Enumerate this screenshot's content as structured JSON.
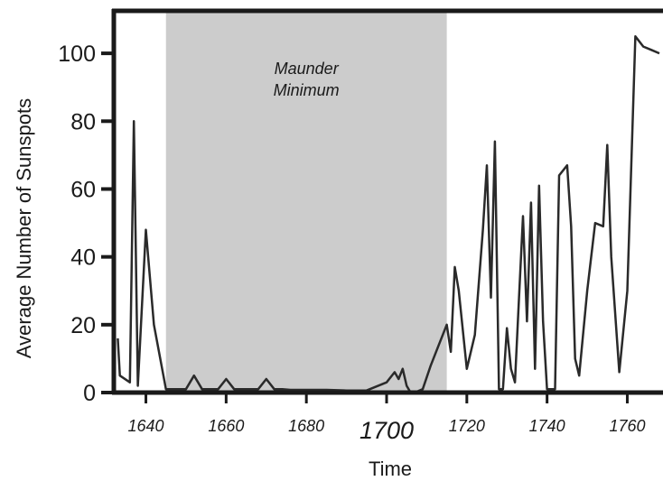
{
  "chart_data": {
    "type": "line",
    "title": "",
    "xlabel": "Time",
    "ylabel": "Average Number of Sunspots",
    "xlim": [
      1632,
      1768
    ],
    "ylim": [
      0,
      112
    ],
    "x_ticks": [
      {
        "value": 1640,
        "label": "1640"
      },
      {
        "value": 1660,
        "label": "1660"
      },
      {
        "value": 1680,
        "label": "1680"
      },
      {
        "value": 1700,
        "label": "1700",
        "emphasized": true
      },
      {
        "value": 1720,
        "label": "1720"
      },
      {
        "value": 1740,
        "label": "1740"
      },
      {
        "value": 1760,
        "label": "1760"
      }
    ],
    "y_ticks": [
      {
        "value": 0,
        "label": "0"
      },
      {
        "value": 20,
        "label": "20"
      },
      {
        "value": 40,
        "label": "40"
      },
      {
        "value": 60,
        "label": "60"
      },
      {
        "value": 80,
        "label": "80"
      },
      {
        "value": 100,
        "label": "100"
      }
    ],
    "grid": false,
    "shaded_region": {
      "x_start": 1645,
      "x_end": 1715,
      "label_lines": [
        "Maunder",
        "Minimum"
      ],
      "color": "#cccccc"
    },
    "series": [
      {
        "color": "#2a2a2a",
        "x": [
          1633,
          1633.5,
          1636,
          1637,
          1638,
          1640,
          1642,
          1645,
          1648,
          1650,
          1652,
          1654,
          1656,
          1658,
          1660,
          1662,
          1664,
          1666,
          1668,
          1670,
          1672,
          1674,
          1676,
          1680,
          1685,
          1690,
          1695,
          1700,
          1702,
          1703,
          1704,
          1705,
          1706,
          1707,
          1709,
          1711,
          1713,
          1715,
          1716,
          1717,
          1718,
          1720,
          1722,
          1724,
          1725,
          1726,
          1727,
          1728,
          1729,
          1730,
          1731,
          1732,
          1733,
          1734,
          1735,
          1736,
          1737,
          1738,
          1739,
          1740,
          1741,
          1742,
          1743,
          1745,
          1746,
          1747,
          1748,
          1750,
          1752,
          1754,
          1755,
          1756,
          1758,
          1760,
          1762,
          1764,
          1766,
          1768
        ],
        "y": [
          16,
          5,
          3,
          80,
          2,
          48,
          20,
          1,
          1,
          1,
          5,
          1,
          1,
          1,
          4,
          1,
          1,
          1,
          1,
          4,
          1,
          1,
          0.8,
          0.8,
          0.8,
          0.6,
          0.6,
          3,
          6,
          4,
          7,
          2,
          0,
          0,
          1,
          8,
          14,
          20,
          12,
          37,
          30,
          7,
          17,
          48,
          67,
          28,
          74,
          1,
          1,
          19,
          7,
          3,
          28,
          52,
          21,
          56,
          7,
          61,
          21,
          1,
          1,
          1,
          64,
          67,
          49,
          10,
          5,
          30,
          50,
          49,
          73,
          40,
          6,
          30,
          105,
          102,
          101,
          100
        ]
      }
    ]
  }
}
